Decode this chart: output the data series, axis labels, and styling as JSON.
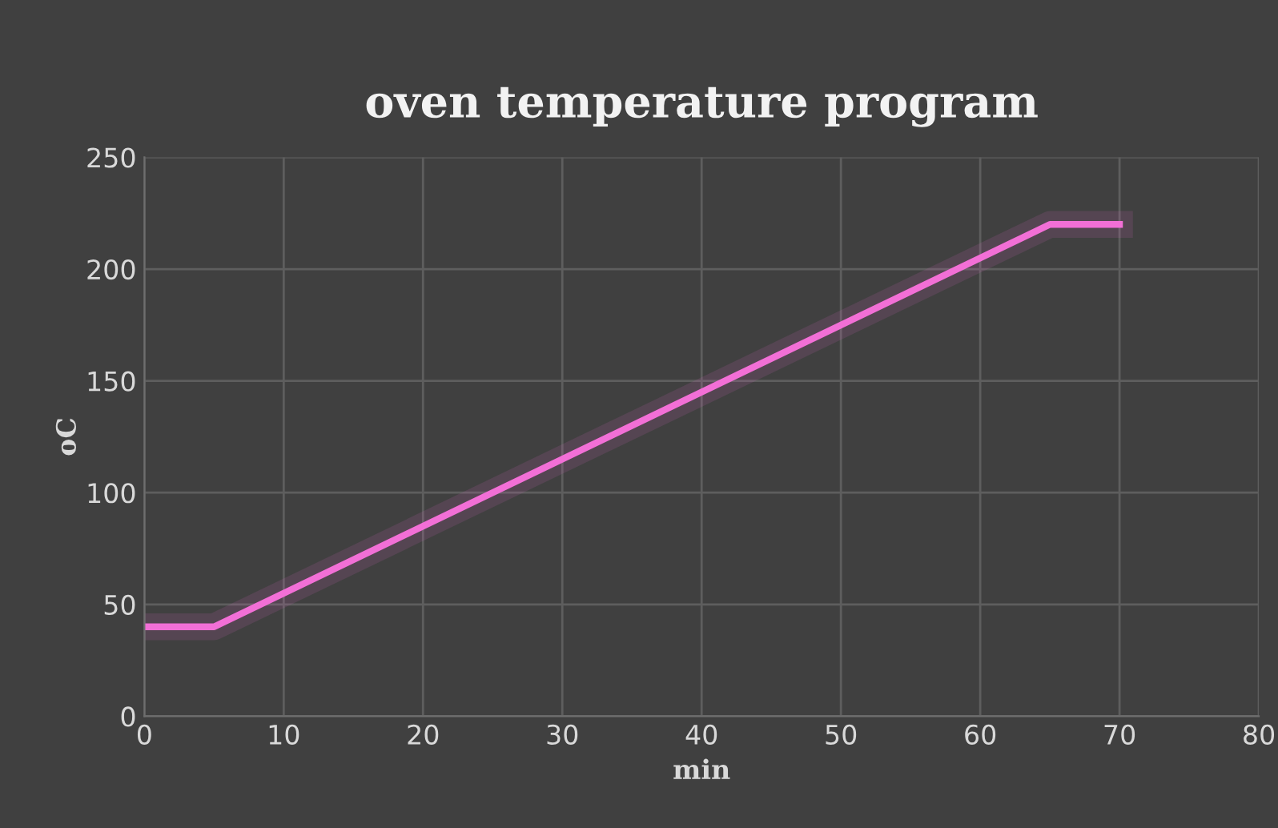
{
  "chart_data": {
    "type": "line",
    "title": "oven temperature program",
    "xlabel": "min",
    "ylabel": "oC",
    "series": [
      {
        "color": "#f26fd6",
        "x": [
          0,
          5,
          65,
          70
        ],
        "values": [
          40,
          40,
          220,
          220
        ]
      }
    ],
    "xlim": [
      0,
      80
    ],
    "xticks": [
      0,
      10,
      20,
      30,
      40,
      50,
      60,
      70,
      80
    ],
    "ylim": [
      0,
      250
    ],
    "yticks": [
      0,
      50,
      100,
      150,
      200,
      250
    ],
    "grid": true,
    "legend": false,
    "marker": "none",
    "line_style": "solid"
  }
}
